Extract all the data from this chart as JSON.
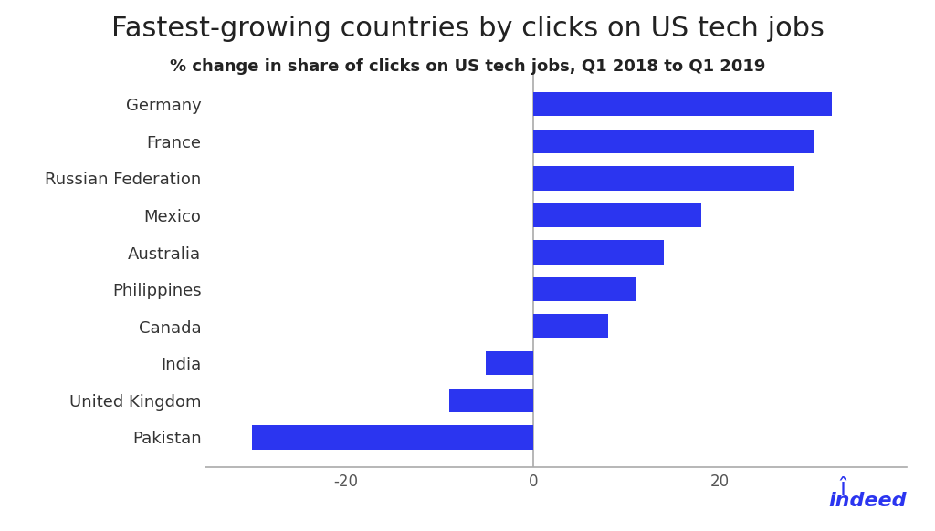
{
  "title": "Fastest-growing countries by clicks on US tech jobs",
  "subtitle": "% change in share of clicks on US tech jobs, Q1 2018 to Q1 2019",
  "countries": [
    "Germany",
    "France",
    "Russian Federation",
    "Mexico",
    "Australia",
    "Philippines",
    "Canada",
    "India",
    "United Kingdom",
    "Pakistan"
  ],
  "values": [
    32,
    30,
    28,
    18,
    14,
    11,
    8,
    -5,
    -9,
    -30
  ],
  "bar_color": "#2B35F0",
  "background_color": "#ffffff",
  "xlim": [
    -35,
    40
  ],
  "xticks": [
    -20,
    0,
    20
  ],
  "axis_color": "#aaaaaa",
  "title_fontsize": 22,
  "subtitle_fontsize": 13,
  "label_fontsize": 13,
  "tick_fontsize": 12,
  "indeed_color": "#2B35F0",
  "indeed_text": "indeed"
}
